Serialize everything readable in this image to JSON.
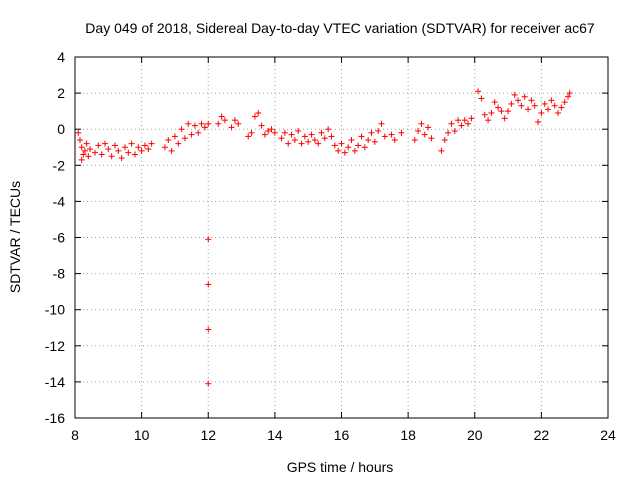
{
  "chart_data": {
    "type": "scatter",
    "title": "Day 049 of 2018, Sidereal Day-to-day VTEC variation (SDTVAR) for receiver ac67",
    "xlabel": "GPS time / hours",
    "ylabel": "SDTVAR / TECUs",
    "xlim": [
      8,
      24
    ],
    "ylim": [
      -16,
      4
    ],
    "xticks": [
      8,
      10,
      12,
      14,
      16,
      18,
      20,
      22,
      24
    ],
    "yticks": [
      -16,
      -14,
      -12,
      -10,
      -8,
      -6,
      -4,
      -2,
      0,
      2,
      4
    ],
    "grid": true,
    "marker": "+",
    "color": "#ff0000",
    "series": [
      {
        "name": "SDTVAR",
        "points": [
          [
            8.1,
            -0.2
          ],
          [
            8.15,
            -0.6
          ],
          [
            8.2,
            -1.0
          ],
          [
            8.25,
            -1.4
          ],
          [
            8.2,
            -1.7
          ],
          [
            8.3,
            -1.2
          ],
          [
            8.35,
            -0.8
          ],
          [
            8.4,
            -1.5
          ],
          [
            8.45,
            -1.1
          ],
          [
            8.6,
            -1.3
          ],
          [
            8.7,
            -0.9
          ],
          [
            8.8,
            -1.4
          ],
          [
            8.9,
            -0.8
          ],
          [
            9.0,
            -1.1
          ],
          [
            9.1,
            -1.5
          ],
          [
            9.2,
            -0.9
          ],
          [
            9.3,
            -1.2
          ],
          [
            9.4,
            -1.6
          ],
          [
            9.5,
            -1.0
          ],
          [
            9.6,
            -1.3
          ],
          [
            9.7,
            -0.8
          ],
          [
            9.8,
            -1.4
          ],
          [
            9.9,
            -1.0
          ],
          [
            10.0,
            -1.2
          ],
          [
            10.1,
            -0.9
          ],
          [
            10.2,
            -1.1
          ],
          [
            10.3,
            -0.8
          ],
          [
            10.7,
            -1.0
          ],
          [
            10.8,
            -0.6
          ],
          [
            10.9,
            -1.2
          ],
          [
            11.0,
            -0.4
          ],
          [
            11.1,
            -0.8
          ],
          [
            11.2,
            0.0
          ],
          [
            11.3,
            -0.5
          ],
          [
            11.4,
            0.3
          ],
          [
            11.5,
            -0.3
          ],
          [
            11.6,
            0.2
          ],
          [
            11.7,
            -0.2
          ],
          [
            11.8,
            0.3
          ],
          [
            11.9,
            0.1
          ],
          [
            12.0,
            0.3
          ],
          [
            12.0,
            -6.1
          ],
          [
            12.0,
            -8.6
          ],
          [
            12.0,
            -11.1
          ],
          [
            12.0,
            -14.1
          ],
          [
            12.3,
            0.3
          ],
          [
            12.4,
            0.7
          ],
          [
            12.5,
            0.5
          ],
          [
            12.7,
            0.1
          ],
          [
            12.8,
            0.5
          ],
          [
            12.9,
            0.3
          ],
          [
            13.2,
            -0.4
          ],
          [
            13.3,
            -0.2
          ],
          [
            13.4,
            0.7
          ],
          [
            13.5,
            0.9
          ],
          [
            13.6,
            0.2
          ],
          [
            13.7,
            -0.3
          ],
          [
            13.8,
            -0.1
          ],
          [
            13.9,
            0.0
          ],
          [
            14.0,
            -0.2
          ],
          [
            14.2,
            -0.5
          ],
          [
            14.3,
            -0.2
          ],
          [
            14.4,
            -0.8
          ],
          [
            14.5,
            -0.3
          ],
          [
            14.6,
            -0.6
          ],
          [
            14.7,
            -0.1
          ],
          [
            14.8,
            -0.8
          ],
          [
            14.9,
            -0.4
          ],
          [
            15.0,
            -0.7
          ],
          [
            15.1,
            -0.3
          ],
          [
            15.2,
            -0.6
          ],
          [
            15.3,
            -0.8
          ],
          [
            15.4,
            -0.2
          ],
          [
            15.5,
            -0.5
          ],
          [
            15.6,
            0.0
          ],
          [
            15.7,
            -0.4
          ],
          [
            15.8,
            -0.9
          ],
          [
            15.9,
            -1.2
          ],
          [
            16.0,
            -0.8
          ],
          [
            16.1,
            -1.3
          ],
          [
            16.2,
            -1.0
          ],
          [
            16.3,
            -0.6
          ],
          [
            16.4,
            -1.2
          ],
          [
            16.5,
            -0.9
          ],
          [
            16.6,
            -0.4
          ],
          [
            16.7,
            -1.0
          ],
          [
            16.8,
            -0.6
          ],
          [
            16.9,
            -0.2
          ],
          [
            17.0,
            -0.7
          ],
          [
            17.1,
            -0.1
          ],
          [
            17.2,
            0.3
          ],
          [
            17.3,
            -0.4
          ],
          [
            17.5,
            -0.3
          ],
          [
            17.6,
            -0.6
          ],
          [
            17.8,
            -0.2
          ],
          [
            18.2,
            -0.6
          ],
          [
            18.3,
            -0.1
          ],
          [
            18.4,
            0.3
          ],
          [
            18.5,
            -0.3
          ],
          [
            18.6,
            0.1
          ],
          [
            18.7,
            -0.5
          ],
          [
            19.0,
            -1.2
          ],
          [
            19.1,
            -0.6
          ],
          [
            19.2,
            -0.2
          ],
          [
            19.3,
            0.3
          ],
          [
            19.4,
            -0.1
          ],
          [
            19.5,
            0.5
          ],
          [
            19.6,
            0.2
          ],
          [
            19.7,
            0.5
          ],
          [
            19.8,
            0.3
          ],
          [
            19.9,
            0.6
          ],
          [
            20.1,
            2.1
          ],
          [
            20.2,
            1.7
          ],
          [
            20.3,
            0.8
          ],
          [
            20.4,
            0.5
          ],
          [
            20.5,
            0.9
          ],
          [
            20.6,
            1.5
          ],
          [
            20.7,
            1.2
          ],
          [
            20.8,
            1.0
          ],
          [
            20.9,
            0.6
          ],
          [
            21.0,
            1.0
          ],
          [
            21.1,
            1.4
          ],
          [
            21.2,
            1.9
          ],
          [
            21.3,
            1.6
          ],
          [
            21.4,
            1.3
          ],
          [
            21.5,
            1.8
          ],
          [
            21.6,
            1.1
          ],
          [
            21.7,
            1.6
          ],
          [
            21.8,
            1.3
          ],
          [
            21.9,
            0.4
          ],
          [
            22.0,
            0.9
          ],
          [
            22.1,
            1.4
          ],
          [
            22.2,
            1.1
          ],
          [
            22.3,
            1.6
          ],
          [
            22.4,
            1.3
          ],
          [
            22.5,
            0.9
          ],
          [
            22.6,
            1.2
          ],
          [
            22.7,
            1.5
          ],
          [
            22.8,
            1.8
          ],
          [
            22.85,
            2.0
          ]
        ]
      }
    ]
  }
}
